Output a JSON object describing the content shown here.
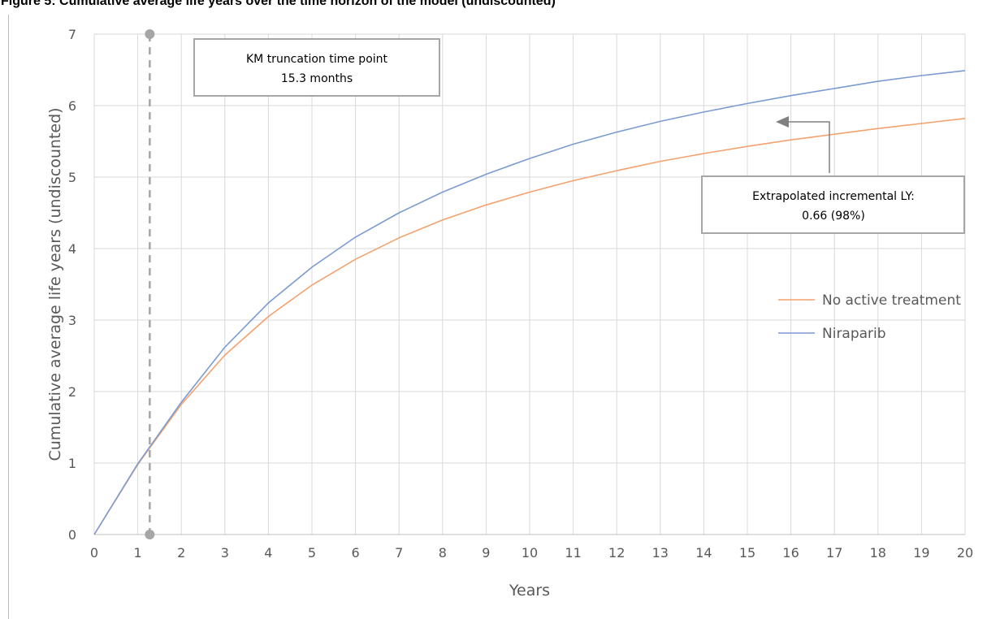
{
  "figure_title": "Figure 5: Cumulative average life years over the time horizon of the model (undiscounted)",
  "chart_data": {
    "type": "line",
    "title": "",
    "xlabel": "Years",
    "ylabel": "Cumulative average life years (undiscounted)",
    "xlim": [
      0,
      20
    ],
    "ylim": [
      0,
      7
    ],
    "x_ticks": [
      "0",
      "1",
      "2",
      "3",
      "4",
      "5",
      "6",
      "7",
      "8",
      "9",
      "10",
      "11",
      "12",
      "13",
      "14",
      "15",
      "16",
      "17",
      "18",
      "19",
      "20"
    ],
    "y_ticks": [
      "0",
      "1",
      "2",
      "3",
      "4",
      "5",
      "6",
      "7"
    ],
    "grid": true,
    "legend_position": "right",
    "x": [
      0,
      1,
      2,
      3,
      4,
      5,
      6,
      7,
      8,
      9,
      10,
      11,
      12,
      13,
      14,
      15,
      16,
      17,
      18,
      19,
      20
    ],
    "series": [
      {
        "name": "No active treatment",
        "color": "#f4a26d",
        "values": [
          0,
          0.98,
          1.82,
          2.51,
          3.05,
          3.49,
          3.85,
          4.15,
          4.4,
          4.61,
          4.79,
          4.95,
          5.09,
          5.22,
          5.33,
          5.43,
          5.52,
          5.6,
          5.68,
          5.75,
          5.82
        ]
      },
      {
        "name": "Niraparib",
        "color": "#7b9bd2",
        "values": [
          0,
          0.99,
          1.85,
          2.62,
          3.24,
          3.74,
          4.16,
          4.5,
          4.79,
          5.04,
          5.26,
          5.46,
          5.63,
          5.78,
          5.91,
          6.03,
          6.14,
          6.24,
          6.34,
          6.42,
          6.49
        ]
      }
    ],
    "vertical_marker": {
      "x": 1.275,
      "color": "#a6a6a6"
    },
    "annotations": [
      {
        "id": "km",
        "lines": [
          "KM truncation time point",
          "15.3 months"
        ]
      },
      {
        "id": "incremental",
        "lines": [
          "Extrapolated incremental LY:",
          "0.66 (98%)"
        ]
      }
    ]
  }
}
